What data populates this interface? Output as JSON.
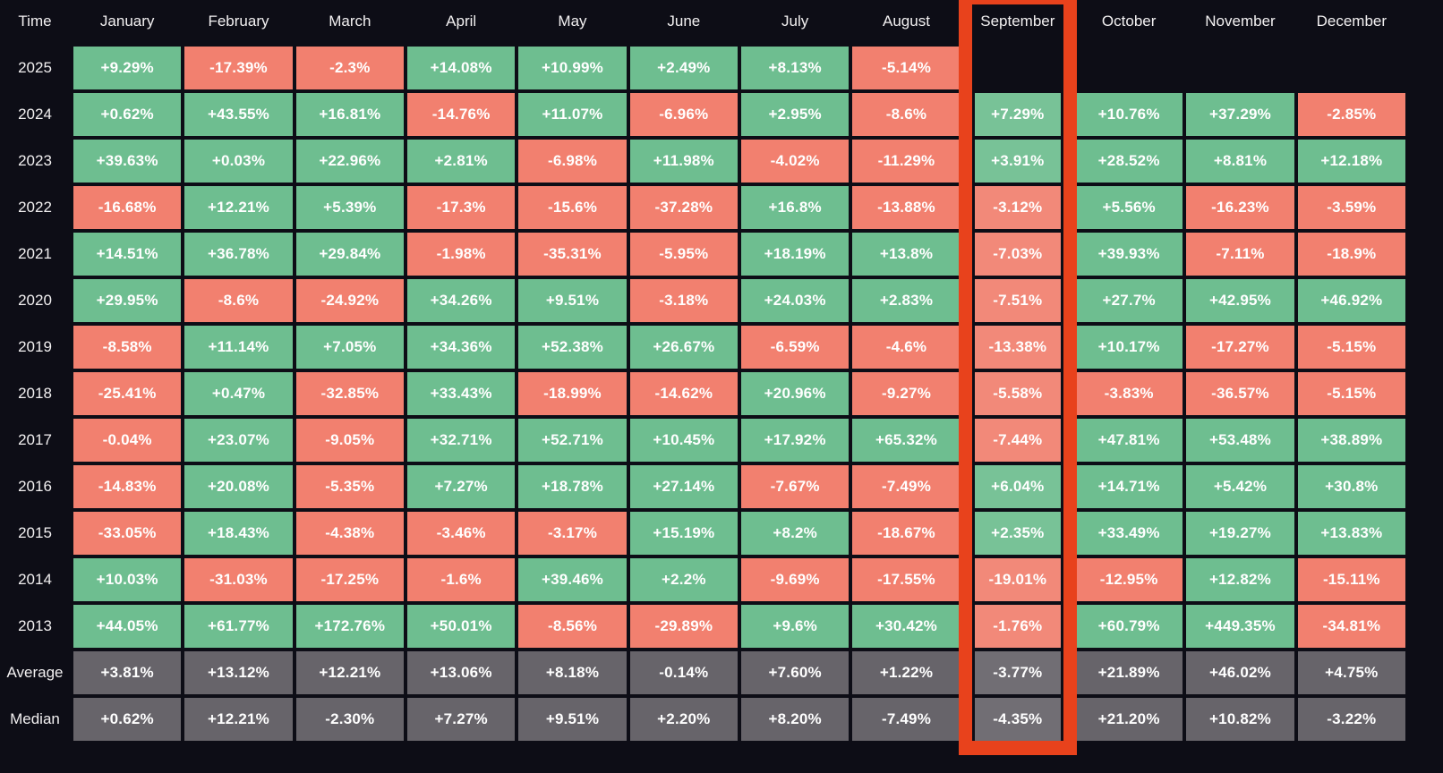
{
  "table": {
    "corner_label": "Time",
    "months": [
      "January",
      "February",
      "March",
      "April",
      "May",
      "June",
      "July",
      "August",
      "September",
      "October",
      "November",
      "December"
    ],
    "rows": [
      {
        "label": "2025",
        "type": "year",
        "values": [
          "+9.29%",
          "-17.39%",
          "-2.3%",
          "+14.08%",
          "+10.99%",
          "+2.49%",
          "+8.13%",
          "-5.14%",
          null,
          null,
          null,
          null
        ]
      },
      {
        "label": "2024",
        "type": "year",
        "values": [
          "+0.62%",
          "+43.55%",
          "+16.81%",
          "-14.76%",
          "+11.07%",
          "-6.96%",
          "+2.95%",
          "-8.6%",
          "+7.29%",
          "+10.76%",
          "+37.29%",
          "-2.85%"
        ]
      },
      {
        "label": "2023",
        "type": "year",
        "values": [
          "+39.63%",
          "+0.03%",
          "+22.96%",
          "+2.81%",
          "-6.98%",
          "+11.98%",
          "-4.02%",
          "-11.29%",
          "+3.91%",
          "+28.52%",
          "+8.81%",
          "+12.18%"
        ]
      },
      {
        "label": "2022",
        "type": "year",
        "values": [
          "-16.68%",
          "+12.21%",
          "+5.39%",
          "-17.3%",
          "-15.6%",
          "-37.28%",
          "+16.8%",
          "-13.88%",
          "-3.12%",
          "+5.56%",
          "-16.23%",
          "-3.59%"
        ]
      },
      {
        "label": "2021",
        "type": "year",
        "values": [
          "+14.51%",
          "+36.78%",
          "+29.84%",
          "-1.98%",
          "-35.31%",
          "-5.95%",
          "+18.19%",
          "+13.8%",
          "-7.03%",
          "+39.93%",
          "-7.11%",
          "-18.9%"
        ]
      },
      {
        "label": "2020",
        "type": "year",
        "values": [
          "+29.95%",
          "-8.6%",
          "-24.92%",
          "+34.26%",
          "+9.51%",
          "-3.18%",
          "+24.03%",
          "+2.83%",
          "-7.51%",
          "+27.7%",
          "+42.95%",
          "+46.92%"
        ]
      },
      {
        "label": "2019",
        "type": "year",
        "values": [
          "-8.58%",
          "+11.14%",
          "+7.05%",
          "+34.36%",
          "+52.38%",
          "+26.67%",
          "-6.59%",
          "-4.6%",
          "-13.38%",
          "+10.17%",
          "-17.27%",
          "-5.15%"
        ]
      },
      {
        "label": "2018",
        "type": "year",
        "values": [
          "-25.41%",
          "+0.47%",
          "-32.85%",
          "+33.43%",
          "-18.99%",
          "-14.62%",
          "+20.96%",
          "-9.27%",
          "-5.58%",
          "-3.83%",
          "-36.57%",
          "-5.15%"
        ]
      },
      {
        "label": "2017",
        "type": "year",
        "values": [
          "-0.04%",
          "+23.07%",
          "-9.05%",
          "+32.71%",
          "+52.71%",
          "+10.45%",
          "+17.92%",
          "+65.32%",
          "-7.44%",
          "+47.81%",
          "+53.48%",
          "+38.89%"
        ]
      },
      {
        "label": "2016",
        "type": "year",
        "values": [
          "-14.83%",
          "+20.08%",
          "-5.35%",
          "+7.27%",
          "+18.78%",
          "+27.14%",
          "-7.67%",
          "-7.49%",
          "+6.04%",
          "+14.71%",
          "+5.42%",
          "+30.8%"
        ]
      },
      {
        "label": "2015",
        "type": "year",
        "values": [
          "-33.05%",
          "+18.43%",
          "-4.38%",
          "-3.46%",
          "-3.17%",
          "+15.19%",
          "+8.2%",
          "-18.67%",
          "+2.35%",
          "+33.49%",
          "+19.27%",
          "+13.83%"
        ]
      },
      {
        "label": "2014",
        "type": "year",
        "values": [
          "+10.03%",
          "-31.03%",
          "-17.25%",
          "-1.6%",
          "+39.46%",
          "+2.2%",
          "-9.69%",
          "-17.55%",
          "-19.01%",
          "-12.95%",
          "+12.82%",
          "-15.11%"
        ]
      },
      {
        "label": "2013",
        "type": "year",
        "values": [
          "+44.05%",
          "+61.77%",
          "+172.76%",
          "+50.01%",
          "-8.56%",
          "-29.89%",
          "+9.6%",
          "+30.42%",
          "-1.76%",
          "+60.79%",
          "+449.35%",
          "-34.81%"
        ]
      },
      {
        "label": "Average",
        "type": "summary",
        "values": [
          "+3.81%",
          "+13.12%",
          "+12.21%",
          "+13.06%",
          "+8.18%",
          "-0.14%",
          "+7.60%",
          "+1.22%",
          "-3.77%",
          "+21.89%",
          "+46.02%",
          "+4.75%"
        ]
      },
      {
        "label": "Median",
        "type": "summary",
        "values": [
          "+0.62%",
          "+12.21%",
          "-2.30%",
          "+7.27%",
          "+9.51%",
          "+2.20%",
          "+8.20%",
          "-7.49%",
          "-4.35%",
          "+21.20%",
          "+10.82%",
          "-3.22%"
        ]
      }
    ]
  },
  "highlight": {
    "month": "September",
    "border_color": "#e8421c"
  },
  "colors": {
    "positive_cell": "#6ebe90",
    "negative_cell": "#f2806f",
    "summary_cell": "#67646a",
    "background": "#0d0d16",
    "text": "#ffffff",
    "highlight_border": "#e8421c"
  },
  "chart_data": {
    "type": "heatmap",
    "x_categories": [
      "January",
      "February",
      "March",
      "April",
      "May",
      "June",
      "July",
      "August",
      "September",
      "October",
      "November",
      "December"
    ],
    "y_categories": [
      "2025",
      "2024",
      "2023",
      "2022",
      "2021",
      "2020",
      "2019",
      "2018",
      "2017",
      "2016",
      "2015",
      "2014",
      "2013",
      "Average",
      "Median"
    ],
    "unit": "percent",
    "highlighted_column": "September",
    "rows": [
      {
        "label": "2025",
        "values": [
          9.29,
          -17.39,
          -2.3,
          14.08,
          10.99,
          2.49,
          8.13,
          -5.14,
          null,
          null,
          null,
          null
        ]
      },
      {
        "label": "2024",
        "values": [
          0.62,
          43.55,
          16.81,
          -14.76,
          11.07,
          -6.96,
          2.95,
          -8.6,
          7.29,
          10.76,
          37.29,
          -2.85
        ]
      },
      {
        "label": "2023",
        "values": [
          39.63,
          0.03,
          22.96,
          2.81,
          -6.98,
          11.98,
          -4.02,
          -11.29,
          3.91,
          28.52,
          8.81,
          12.18
        ]
      },
      {
        "label": "2022",
        "values": [
          -16.68,
          12.21,
          5.39,
          -17.3,
          -15.6,
          -37.28,
          16.8,
          -13.88,
          -3.12,
          5.56,
          -16.23,
          -3.59
        ]
      },
      {
        "label": "2021",
        "values": [
          14.51,
          36.78,
          29.84,
          -1.98,
          -35.31,
          -5.95,
          18.19,
          13.8,
          -7.03,
          39.93,
          -7.11,
          -18.9
        ]
      },
      {
        "label": "2020",
        "values": [
          29.95,
          -8.6,
          -24.92,
          34.26,
          9.51,
          -3.18,
          24.03,
          2.83,
          -7.51,
          27.7,
          42.95,
          46.92
        ]
      },
      {
        "label": "2019",
        "values": [
          -8.58,
          11.14,
          7.05,
          34.36,
          52.38,
          26.67,
          -6.59,
          -4.6,
          -13.38,
          10.17,
          -17.27,
          -5.15
        ]
      },
      {
        "label": "2018",
        "values": [
          -25.41,
          0.47,
          -32.85,
          33.43,
          -18.99,
          -14.62,
          20.96,
          -9.27,
          -5.58,
          -3.83,
          -36.57,
          -5.15
        ]
      },
      {
        "label": "2017",
        "values": [
          -0.04,
          23.07,
          -9.05,
          32.71,
          52.71,
          10.45,
          17.92,
          65.32,
          -7.44,
          47.81,
          53.48,
          38.89
        ]
      },
      {
        "label": "2016",
        "values": [
          -14.83,
          20.08,
          -5.35,
          7.27,
          18.78,
          27.14,
          -7.67,
          -7.49,
          6.04,
          14.71,
          5.42,
          30.8
        ]
      },
      {
        "label": "2015",
        "values": [
          -33.05,
          18.43,
          -4.38,
          -3.46,
          -3.17,
          15.19,
          8.2,
          -18.67,
          2.35,
          33.49,
          19.27,
          13.83
        ]
      },
      {
        "label": "2014",
        "values": [
          10.03,
          -31.03,
          -17.25,
          -1.6,
          39.46,
          2.2,
          -9.69,
          -17.55,
          -19.01,
          -12.95,
          12.82,
          -15.11
        ]
      },
      {
        "label": "2013",
        "values": [
          44.05,
          61.77,
          172.76,
          50.01,
          -8.56,
          -29.89,
          9.6,
          30.42,
          -1.76,
          60.79,
          449.35,
          -34.81
        ]
      },
      {
        "label": "Average",
        "values": [
          3.81,
          13.12,
          12.21,
          13.06,
          8.18,
          -0.14,
          7.6,
          1.22,
          -3.77,
          21.89,
          46.02,
          4.75
        ]
      },
      {
        "label": "Median",
        "values": [
          0.62,
          12.21,
          -2.3,
          7.27,
          9.51,
          2.2,
          8.2,
          -7.49,
          -4.35,
          21.2,
          10.82,
          -3.22
        ]
      }
    ]
  }
}
